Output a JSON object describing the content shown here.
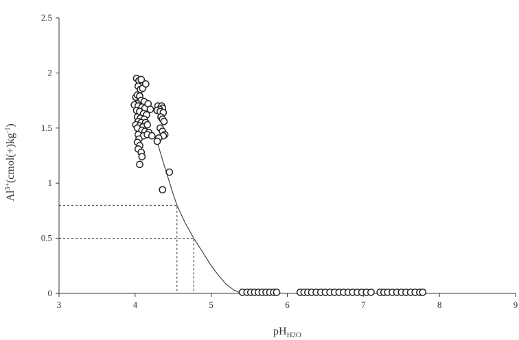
{
  "chart_data": {
    "type": "scatter",
    "title": "",
    "xlabel_main": "pH",
    "xlabel_sub": "H2O",
    "ylabel_main": "Al",
    "ylabel_sup1": "3+",
    "ylabel_mid": "(cmol(+)kg",
    "ylabel_sup2": "-1",
    "ylabel_end": ")",
    "xlim": [
      3,
      9
    ],
    "ylim": [
      0,
      2.5
    ],
    "x_ticks": [
      3,
      4,
      5,
      6,
      7,
      8,
      9
    ],
    "y_ticks": [
      0,
      0.5,
      1,
      1.5,
      2,
      2.5
    ],
    "x_tick_labels": [
      "3",
      "4",
      "5",
      "6",
      "7",
      "8",
      "9"
    ],
    "y_tick_labels": [
      "0",
      "0.5",
      "1",
      "1.5",
      "2",
      "2.5"
    ],
    "grid": false,
    "series": [
      {
        "kind": "points",
        "points": [
          [
            4.02,
            1.95
          ],
          [
            4.05,
            1.93
          ],
          [
            4.08,
            1.94
          ],
          [
            4.04,
            1.88
          ],
          [
            4.07,
            1.85
          ],
          [
            4.1,
            1.86
          ],
          [
            4.14,
            1.9
          ],
          [
            4.01,
            1.78
          ],
          [
            4.03,
            1.8
          ],
          [
            4.06,
            1.79
          ],
          [
            4.08,
            1.75
          ],
          [
            4.12,
            1.74
          ],
          [
            4.03,
            1.72
          ],
          [
            3.99,
            1.71
          ],
          [
            4.04,
            1.7
          ],
          [
            4.09,
            1.69
          ],
          [
            4.13,
            1.68
          ],
          [
            4.17,
            1.72
          ],
          [
            4.2,
            1.67
          ],
          [
            4.02,
            1.66
          ],
          [
            4.06,
            1.65
          ],
          [
            4.11,
            1.63
          ],
          [
            4.15,
            1.62
          ],
          [
            4.03,
            1.6
          ],
          [
            4.07,
            1.59
          ],
          [
            4.12,
            1.58
          ],
          [
            4.04,
            1.56
          ],
          [
            4.08,
            1.55
          ],
          [
            4.14,
            1.55
          ],
          [
            4.01,
            1.53
          ],
          [
            4.06,
            1.52
          ],
          [
            4.1,
            1.51
          ],
          [
            4.16,
            1.53
          ],
          [
            4.03,
            1.5
          ],
          [
            4.09,
            1.48
          ],
          [
            4.13,
            1.47
          ],
          [
            4.18,
            1.46
          ],
          [
            4.04,
            1.44
          ],
          [
            4.11,
            1.43
          ],
          [
            4.16,
            1.44
          ],
          [
            4.22,
            1.43
          ],
          [
            4.05,
            1.4
          ],
          [
            4.03,
            1.37
          ],
          [
            4.06,
            1.34
          ],
          [
            4.04,
            1.31
          ],
          [
            4.08,
            1.28
          ],
          [
            4.09,
            1.24
          ],
          [
            4.06,
            1.17
          ],
          [
            4.3,
            1.7
          ],
          [
            4.35,
            1.7
          ],
          [
            4.36,
            1.68
          ],
          [
            4.32,
            1.67
          ],
          [
            4.29,
            1.66
          ],
          [
            4.33,
            1.65
          ],
          [
            4.37,
            1.64
          ],
          [
            4.34,
            1.6
          ],
          [
            4.36,
            1.58
          ],
          [
            4.38,
            1.56
          ],
          [
            4.33,
            1.5
          ],
          [
            4.36,
            1.47
          ],
          [
            4.39,
            1.44
          ],
          [
            4.37,
            1.43
          ],
          [
            4.31,
            1.41
          ],
          [
            4.29,
            1.38
          ],
          [
            4.45,
            1.1
          ],
          [
            4.36,
            0.94
          ],
          [
            5.41,
            0.01
          ],
          [
            5.47,
            0.01
          ],
          [
            5.52,
            0.01
          ],
          [
            5.57,
            0.01
          ],
          [
            5.62,
            0.01
          ],
          [
            5.67,
            0.01
          ],
          [
            5.72,
            0.01
          ],
          [
            5.77,
            0.01
          ],
          [
            5.82,
            0.01
          ],
          [
            5.86,
            0.01
          ],
          [
            6.17,
            0.01
          ],
          [
            6.22,
            0.01
          ],
          [
            6.27,
            0.01
          ],
          [
            6.32,
            0.01
          ],
          [
            6.38,
            0.01
          ],
          [
            6.44,
            0.01
          ],
          [
            6.5,
            0.01
          ],
          [
            6.56,
            0.01
          ],
          [
            6.62,
            0.01
          ],
          [
            6.68,
            0.01
          ],
          [
            6.74,
            0.01
          ],
          [
            6.8,
            0.01
          ],
          [
            6.86,
            0.01
          ],
          [
            6.92,
            0.01
          ],
          [
            6.98,
            0.01
          ],
          [
            7.04,
            0.01
          ],
          [
            7.1,
            0.01
          ],
          [
            7.22,
            0.01
          ],
          [
            7.27,
            0.01
          ],
          [
            7.32,
            0.01
          ],
          [
            7.38,
            0.01
          ],
          [
            7.44,
            0.01
          ],
          [
            7.5,
            0.01
          ],
          [
            7.56,
            0.01
          ],
          [
            7.62,
            0.01
          ],
          [
            7.68,
            0.01
          ],
          [
            7.74,
            0.01
          ],
          [
            7.78,
            0.01
          ]
        ]
      },
      {
        "kind": "fitted-curve",
        "points": [
          [
            4.3,
            1.35
          ],
          [
            4.4,
            1.12
          ],
          [
            4.5,
            0.9
          ],
          [
            4.55,
            0.8
          ],
          [
            4.65,
            0.65
          ],
          [
            4.77,
            0.5
          ],
          [
            4.9,
            0.36
          ],
          [
            5.0,
            0.25
          ],
          [
            5.1,
            0.16
          ],
          [
            5.2,
            0.08
          ],
          [
            5.3,
            0.03
          ],
          [
            5.4,
            0.0
          ]
        ]
      }
    ],
    "reference_lines": [
      {
        "x": 4.55,
        "y": 0.8
      },
      {
        "x": 4.77,
        "y": 0.5
      }
    ]
  }
}
